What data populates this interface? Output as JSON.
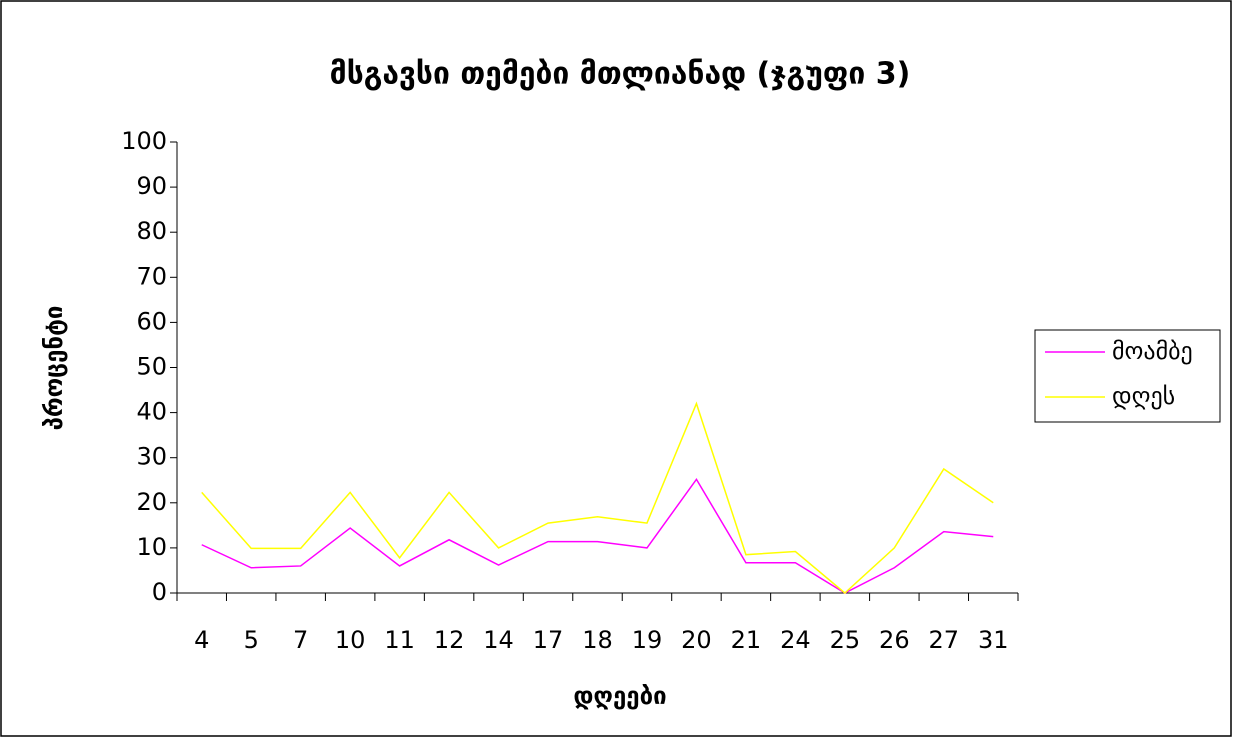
{
  "chart_data": {
    "type": "line",
    "title": "მსგავსი თემები მთლიანად (ჯგუფი 3)",
    "x_label": "დღეები",
    "y_label": "პროცენტი",
    "categories": [
      "4",
      "5",
      "7",
      "10",
      "11",
      "12",
      "14",
      "17",
      "18",
      "19",
      "20",
      "21",
      "24",
      "25",
      "26",
      "27",
      "31"
    ],
    "series": [
      {
        "name": "მოამბე",
        "color": "#ff00ff",
        "values": [
          10.7,
          5.6,
          6,
          14.4,
          6,
          11.8,
          6.2,
          11.4,
          11.4,
          10,
          25.2,
          6.7,
          6.7,
          0,
          5.6,
          13.6,
          12.5
        ]
      },
      {
        "name": "დღეს",
        "color": "#ffff00",
        "values": [
          22.3,
          9.9,
          9.9,
          22.3,
          7.8,
          22.3,
          10,
          15.5,
          16.9,
          15.5,
          42,
          8.5,
          9.2,
          0,
          10,
          27.5,
          20
        ]
      }
    ],
    "ylim": [
      0,
      100
    ],
    "yticks": [
      0,
      10,
      20,
      30,
      40,
      50,
      60,
      70,
      80,
      90,
      100
    ],
    "grid": false,
    "legend": "right"
  }
}
